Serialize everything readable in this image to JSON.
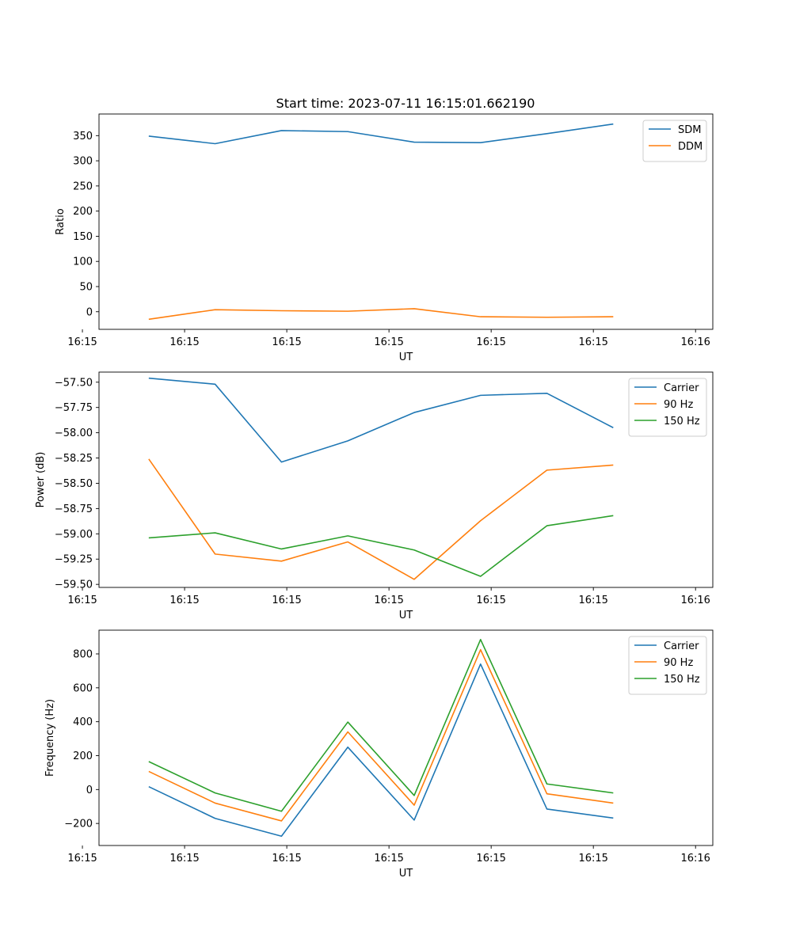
{
  "figure": {
    "title": "Start time: 2023-07-11 16:15:01.662190"
  },
  "chart_data": [
    {
      "type": "line",
      "xlabel": "UT",
      "ylabel": "Ratio",
      "x": [
        1,
        2,
        3,
        4,
        5,
        6,
        7,
        8
      ],
      "xlim": [
        0.25,
        9.5
      ],
      "xticks": [
        {
          "v": 0,
          "label": "16:15"
        },
        {
          "v": 1.54,
          "label": "16:15"
        },
        {
          "v": 3.08,
          "label": "16:15"
        },
        {
          "v": 4.62,
          "label": "16:15"
        },
        {
          "v": 6.16,
          "label": "16:15"
        },
        {
          "v": 7.7,
          "label": "16:15"
        },
        {
          "v": 9.24,
          "label": "16:16"
        }
      ],
      "ylim": [
        -35,
        393
      ],
      "yticks": [
        0,
        50,
        100,
        150,
        200,
        250,
        300,
        350
      ],
      "legend_position": "top-right",
      "series": [
        {
          "name": "SDM",
          "color": "#1f77b4",
          "values": [
            349,
            334,
            360,
            358,
            337,
            336,
            354,
            373
          ]
        },
        {
          "name": "DDM",
          "color": "#ff7f0e",
          "values": [
            -15,
            4,
            2,
            1,
            6,
            -10,
            -11,
            -10
          ]
        }
      ]
    },
    {
      "type": "line",
      "xlabel": "UT",
      "ylabel": "Power (dB)",
      "x": [
        1,
        2,
        3,
        4,
        5,
        6,
        7,
        8
      ],
      "xlim": [
        0.25,
        9.5
      ],
      "xticks": [
        {
          "v": 0,
          "label": "16:15"
        },
        {
          "v": 1.54,
          "label": "16:15"
        },
        {
          "v": 3.08,
          "label": "16:15"
        },
        {
          "v": 4.62,
          "label": "16:15"
        },
        {
          "v": 6.16,
          "label": "16:15"
        },
        {
          "v": 7.7,
          "label": "16:15"
        },
        {
          "v": 9.24,
          "label": "16:16"
        }
      ],
      "ylim": [
        -59.53,
        -57.4
      ],
      "yticks": [
        {
          "v": -57.5,
          "label": "−57.50"
        },
        {
          "v": -57.75,
          "label": "−57.75"
        },
        {
          "v": -58.0,
          "label": "−58.00"
        },
        {
          "v": -58.25,
          "label": "−58.25"
        },
        {
          "v": -58.5,
          "label": "−58.50"
        },
        {
          "v": -58.75,
          "label": "−58.75"
        },
        {
          "v": -59.0,
          "label": "−59.00"
        },
        {
          "v": -59.25,
          "label": "−59.25"
        },
        {
          "v": -59.5,
          "label": "−59.50"
        }
      ],
      "legend_position": "top-right",
      "series": [
        {
          "name": "Carrier",
          "color": "#1f77b4",
          "values": [
            -57.46,
            -57.52,
            -58.29,
            -58.08,
            -57.8,
            -57.63,
            -57.61,
            -57.95
          ]
        },
        {
          "name": "90 Hz",
          "color": "#ff7f0e",
          "values": [
            -58.26,
            -59.2,
            -59.27,
            -59.08,
            -59.45,
            -58.87,
            -58.37,
            -58.32
          ]
        },
        {
          "name": "150 Hz",
          "color": "#2ca02c",
          "values": [
            -59.04,
            -58.99,
            -59.15,
            -59.02,
            -59.16,
            -59.42,
            -58.92,
            -58.82
          ]
        }
      ]
    },
    {
      "type": "line",
      "xlabel": "UT",
      "ylabel": "Frequency (Hz)",
      "x": [
        1,
        2,
        3,
        4,
        5,
        6,
        7,
        8
      ],
      "xlim": [
        0.25,
        9.5
      ],
      "xticks": [
        {
          "v": 0,
          "label": "16:15"
        },
        {
          "v": 1.54,
          "label": "16:15"
        },
        {
          "v": 3.08,
          "label": "16:15"
        },
        {
          "v": 4.62,
          "label": "16:15"
        },
        {
          "v": 6.16,
          "label": "16:15"
        },
        {
          "v": 7.7,
          "label": "16:15"
        },
        {
          "v": 9.24,
          "label": "16:16"
        }
      ],
      "ylim": [
        -330,
        940
      ],
      "yticks": [
        {
          "v": -200,
          "label": "−200"
        },
        {
          "v": 0,
          "label": "0"
        },
        {
          "v": 200,
          "label": "200"
        },
        {
          "v": 400,
          "label": "400"
        },
        {
          "v": 600,
          "label": "600"
        },
        {
          "v": 800,
          "label": "800"
        }
      ],
      "legend_position": "top-right",
      "series": [
        {
          "name": "Carrier",
          "color": "#1f77b4",
          "values": [
            17,
            -170,
            -275,
            250,
            -180,
            740,
            -115,
            -168
          ]
        },
        {
          "name": "90 Hz",
          "color": "#ff7f0e",
          "values": [
            107,
            -80,
            -185,
            340,
            -92,
            825,
            -25,
            -80
          ]
        },
        {
          "name": "150 Hz",
          "color": "#2ca02c",
          "values": [
            165,
            -20,
            -128,
            398,
            -35,
            885,
            33,
            -20
          ]
        }
      ]
    }
  ]
}
